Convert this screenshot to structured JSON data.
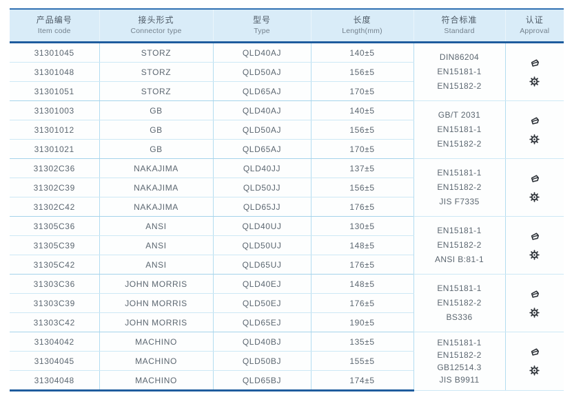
{
  "header": {
    "columns": [
      {
        "zh": "产品编号",
        "en": "Item code"
      },
      {
        "zh": "接头形式",
        "en": "Connector type"
      },
      {
        "zh": "型号",
        "en": "Type"
      },
      {
        "zh": "长度",
        "en": "Length(mm)"
      },
      {
        "zh": "符合标准",
        "en": "Standard"
      },
      {
        "zh": "认证",
        "en": "Approval"
      }
    ]
  },
  "icons": {
    "approval": [
      "cert-logo-icon",
      "wheelmark-icon"
    ]
  },
  "colors": {
    "header_bg": "#d9ecf8",
    "border_dark_blue": "#1e5c9e",
    "border_top_blue": "#2f6fb2",
    "grid_light_blue": "#b3dcf0",
    "text": "#5b6670",
    "icon": "#2a2f35"
  },
  "groups": [
    {
      "rows": [
        {
          "item_code": "31301045",
          "connector_type": "STORZ",
          "type": "QLD40AJ",
          "length": "140±5"
        },
        {
          "item_code": "31301048",
          "connector_type": "STORZ",
          "type": "QLD50AJ",
          "length": "156±5"
        },
        {
          "item_code": "31301051",
          "connector_type": "STORZ",
          "type": "QLD65AJ",
          "length": "170±5"
        }
      ],
      "standards": [
        "DIN86204",
        "EN15181-1",
        "EN15182-2"
      ]
    },
    {
      "rows": [
        {
          "item_code": "31301003",
          "connector_type": "GB",
          "type": "QLD40AJ",
          "length": "140±5"
        },
        {
          "item_code": "31301012",
          "connector_type": "GB",
          "type": "QLD50AJ",
          "length": "156±5"
        },
        {
          "item_code": "31301021",
          "connector_type": "GB",
          "type": "QLD65AJ",
          "length": "170±5"
        }
      ],
      "standards": [
        "GB/T 2031",
        "EN15181-1",
        "EN15182-2"
      ]
    },
    {
      "rows": [
        {
          "item_code": "31302C36",
          "connector_type": "NAKAJIMA",
          "type": "QLD40JJ",
          "length": "137±5"
        },
        {
          "item_code": "31302C39",
          "connector_type": "NAKAJIMA",
          "type": "QLD50JJ",
          "length": "156±5"
        },
        {
          "item_code": "31302C42",
          "connector_type": "NAKAJIMA",
          "type": "QLD65JJ",
          "length": "176±5"
        }
      ],
      "standards": [
        "EN15181-1",
        "EN15182-2",
        "JIS F7335"
      ]
    },
    {
      "rows": [
        {
          "item_code": "31305C36",
          "connector_type": "ANSI",
          "type": "QLD40UJ",
          "length": "130±5"
        },
        {
          "item_code": "31305C39",
          "connector_type": "ANSI",
          "type": "QLD50UJ",
          "length": "148±5"
        },
        {
          "item_code": "31305C42",
          "connector_type": "ANSI",
          "type": "QLD65UJ",
          "length": "176±5"
        }
      ],
      "standards": [
        "EN15181-1",
        "EN15182-2",
        "ANSI B:81-1"
      ]
    },
    {
      "rows": [
        {
          "item_code": "31303C36",
          "connector_type": "JOHN MORRIS",
          "type": "QLD40EJ",
          "length": "148±5"
        },
        {
          "item_code": "31303C39",
          "connector_type": "JOHN MORRIS",
          "type": "QLD50EJ",
          "length": "176±5"
        },
        {
          "item_code": "31303C42",
          "connector_type": "JOHN MORRIS",
          "type": "QLD65EJ",
          "length": "190±5"
        }
      ],
      "standards": [
        "EN15181-1",
        "EN15182-2",
        "BS336"
      ]
    },
    {
      "rows": [
        {
          "item_code": "31304042",
          "connector_type": "MACHINO",
          "type": "QLD40BJ",
          "length": "135±5"
        },
        {
          "item_code": "31304045",
          "connector_type": "MACHINO",
          "type": "QLD50BJ",
          "length": "155±5"
        },
        {
          "item_code": "31304048",
          "connector_type": "MACHINO",
          "type": "QLD65BJ",
          "length": "174±5"
        }
      ],
      "standards": [
        "EN15181-1",
        "EN15182-2",
        "GB12514.3",
        "JIS B9911"
      ]
    }
  ]
}
